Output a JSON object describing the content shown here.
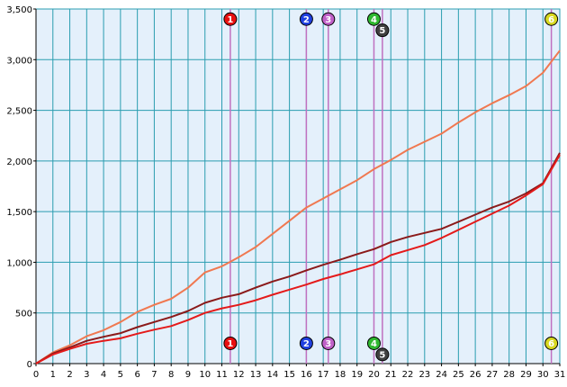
{
  "chart_data": {
    "type": "line",
    "title": "",
    "xlabel": "",
    "ylabel": "",
    "xlim": [
      0,
      31
    ],
    "ylim": [
      0,
      3500
    ],
    "x_ticks": [
      "0",
      "1",
      "2",
      "3",
      "4",
      "5",
      "6",
      "7",
      "8",
      "9",
      "10",
      "11",
      "12",
      "13",
      "14",
      "15",
      "16",
      "17",
      "18",
      "19",
      "20",
      "21",
      "22",
      "23",
      "24",
      "25",
      "26",
      "27",
      "28",
      "29",
      "30",
      "31"
    ],
    "y_ticks": [
      {
        "value": 0,
        "label": "0"
      },
      {
        "value": 500,
        "label": "500"
      },
      {
        "value": 1000,
        "label": "1,000"
      },
      {
        "value": 1500,
        "label": "1,500"
      },
      {
        "value": 2000,
        "label": "2,000"
      },
      {
        "value": 2500,
        "label": "2,500"
      },
      {
        "value": 3000,
        "label": "3,000"
      },
      {
        "value": 3500,
        "label": "3,500"
      }
    ],
    "grid": true,
    "colors": {
      "plot_background": "#e4f0fb",
      "grid": "#2a9db0",
      "event_line": "#c070c0"
    },
    "series": [
      {
        "color": "#f07850",
        "x": [
          0,
          1,
          2,
          3,
          4,
          5,
          6,
          7,
          8,
          9,
          10,
          11,
          12,
          13,
          14,
          15,
          16,
          17,
          18,
          19,
          20,
          21,
          22,
          23,
          24,
          25,
          26,
          27,
          28,
          29,
          30,
          31
        ],
        "y": [
          0,
          110,
          180,
          270,
          330,
          410,
          510,
          580,
          640,
          750,
          900,
          960,
          1050,
          1150,
          1280,
          1410,
          1540,
          1630,
          1720,
          1810,
          1920,
          2010,
          2110,
          2190,
          2270,
          2380,
          2480,
          2570,
          2650,
          2740,
          2870,
          3090
        ]
      },
      {
        "color": "#8b1a1a",
        "x": [
          0,
          1,
          2,
          3,
          4,
          5,
          6,
          7,
          8,
          9,
          10,
          11,
          12,
          13,
          14,
          15,
          16,
          17,
          18,
          19,
          20,
          21,
          22,
          23,
          24,
          25,
          26,
          27,
          28,
          29,
          30,
          31
        ],
        "y": [
          0,
          100,
          160,
          225,
          265,
          300,
          360,
          410,
          460,
          520,
          600,
          650,
          685,
          750,
          810,
          860,
          920,
          975,
          1025,
          1080,
          1130,
          1200,
          1250,
          1290,
          1330,
          1400,
          1470,
          1540,
          1600,
          1680,
          1780,
          2080
        ]
      },
      {
        "color": "#e41a1a",
        "x": [
          0,
          1,
          2,
          3,
          4,
          5,
          6,
          7,
          8,
          9,
          10,
          11,
          12,
          13,
          14,
          15,
          16,
          17,
          18,
          19,
          20,
          21,
          22,
          23,
          24,
          25,
          26,
          27,
          28,
          29,
          30,
          31
        ],
        "y": [
          0,
          90,
          145,
          195,
          225,
          250,
          295,
          335,
          370,
          430,
          500,
          545,
          580,
          625,
          680,
          730,
          780,
          835,
          880,
          930,
          980,
          1070,
          1120,
          1170,
          1240,
          1320,
          1400,
          1480,
          1560,
          1660,
          1770,
          2060
        ]
      }
    ],
    "events": [
      {
        "label": "1",
        "x": 11.5,
        "color": "#e81010",
        "y_top": 3400,
        "y_bottom": 200
      },
      {
        "label": "2",
        "x": 16.0,
        "color": "#2040e0",
        "y_top": 3400,
        "y_bottom": 200
      },
      {
        "label": "3",
        "x": 17.3,
        "color": "#c060c8",
        "y_top": 3400,
        "y_bottom": 200
      },
      {
        "label": "4",
        "x": 20.0,
        "color": "#30b830",
        "y_top": 3400,
        "y_bottom": 200
      },
      {
        "label": "5",
        "x": 20.5,
        "color": "#404040",
        "y_top": 3290,
        "y_bottom": 90
      },
      {
        "label": "6",
        "x": 30.5,
        "color": "#d8d820",
        "y_top": 3400,
        "y_bottom": 200
      }
    ]
  }
}
